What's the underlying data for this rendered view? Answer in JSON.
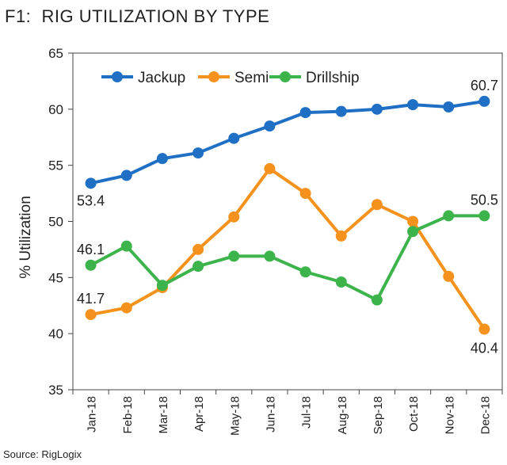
{
  "title": "F1:  RIG UTILIZATION BY TYPE",
  "source": "Source: RigLogix",
  "chart_data": {
    "type": "line",
    "title": "F1:  RIG UTILIZATION BY TYPE",
    "xlabel": "",
    "ylabel": "% Utilization",
    "ylim": [
      35,
      65
    ],
    "yticks": [
      35,
      40,
      45,
      50,
      55,
      60,
      65
    ],
    "grid": false,
    "legend": "top-left",
    "categories": [
      "Jan-18",
      "Feb-18",
      "Mar-18",
      "Apr-18",
      "May-18",
      "Jun-18",
      "Jul-18",
      "Aug-18",
      "Sep-18",
      "Oct-18",
      "Nov-18",
      "Dec-18"
    ],
    "series": [
      {
        "name": "Jackup",
        "color": "#1f6fc5",
        "values": [
          53.4,
          54.1,
          55.6,
          56.1,
          57.4,
          58.5,
          59.7,
          59.8,
          60.0,
          60.4,
          60.2,
          60.7
        ]
      },
      {
        "name": "Semi",
        "color": "#f5921e",
        "values": [
          41.7,
          42.3,
          44.1,
          47.5,
          50.4,
          54.7,
          52.5,
          48.7,
          51.5,
          50.0,
          45.1,
          40.4
        ]
      },
      {
        "name": "Drillship",
        "color": "#3cb44b",
        "values": [
          46.1,
          47.8,
          44.3,
          46.0,
          46.9,
          46.9,
          45.5,
          44.6,
          43.0,
          49.1,
          50.5,
          50.5
        ]
      }
    ],
    "annotations": [
      {
        "series": 0,
        "index": 0,
        "text": "53.4",
        "position": "below"
      },
      {
        "series": 0,
        "index": 11,
        "text": "60.7",
        "position": "above"
      },
      {
        "series": 2,
        "index": 0,
        "text": "46.1",
        "position": "above"
      },
      {
        "series": 2,
        "index": 11,
        "text": "50.5",
        "position": "above"
      },
      {
        "series": 1,
        "index": 0,
        "text": "41.7",
        "position": "above"
      },
      {
        "series": 1,
        "index": 11,
        "text": "40.4",
        "position": "below"
      }
    ]
  }
}
